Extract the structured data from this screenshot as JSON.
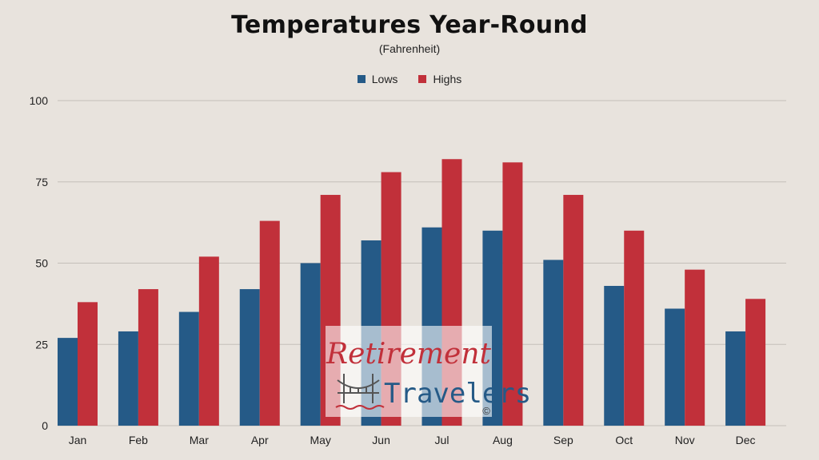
{
  "chart_data": {
    "type": "bar",
    "title": "Temperatures Year-Round",
    "subtitle": "(Fahrenheit)",
    "xlabel": "",
    "ylabel": "",
    "categories": [
      "Jan",
      "Feb",
      "Mar",
      "Apr",
      "May",
      "Jun",
      "Jul",
      "Aug",
      "Sep",
      "Oct",
      "Nov",
      "Dec"
    ],
    "series": [
      {
        "name": "Lows",
        "color": "#255a87",
        "values": [
          27,
          29,
          35,
          42,
          50,
          57,
          61,
          60,
          51,
          43,
          36,
          29
        ]
      },
      {
        "name": "Highs",
        "color": "#c1303a",
        "values": [
          38,
          42,
          52,
          63,
          71,
          78,
          82,
          81,
          71,
          60,
          48,
          39
        ]
      }
    ],
    "ylim": [
      0,
      100
    ],
    "yticks": [
      0,
      25,
      50,
      75,
      100
    ],
    "grid": true,
    "legend_position": "top-center"
  },
  "watermark": {
    "line1": "Retirement",
    "line2": "Travelers",
    "symbol": "©",
    "icon": "bridge-icon"
  }
}
